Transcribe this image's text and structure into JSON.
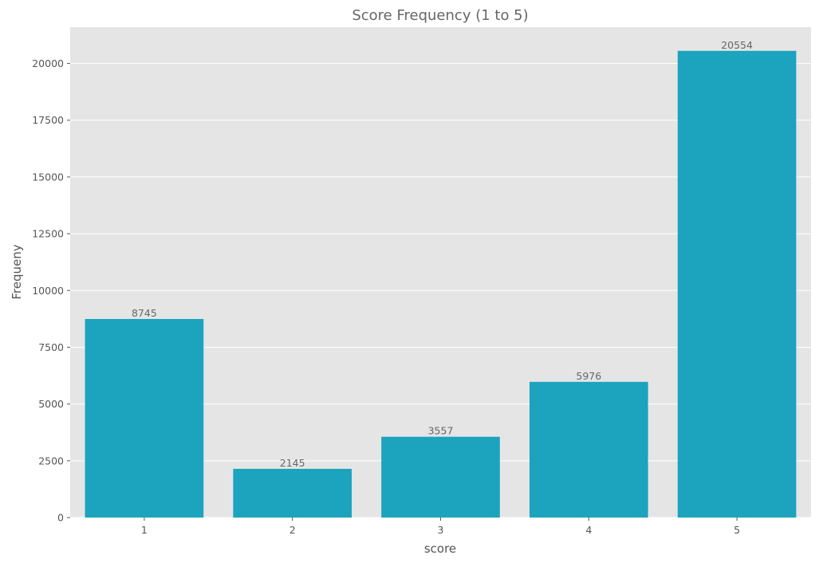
{
  "chart_data": {
    "type": "bar",
    "title": "Score Frequency (1 to 5)",
    "xlabel": "score",
    "ylabel": "Frequeny",
    "categories": [
      "1",
      "2",
      "3",
      "4",
      "5"
    ],
    "values": [
      8745,
      2145,
      3557,
      5976,
      20554
    ],
    "data_labels": [
      "8745",
      "2145",
      "3557",
      "5976",
      "20554"
    ],
    "ylim": [
      0,
      21600
    ],
    "yticks": [
      0,
      2500,
      5000,
      7500,
      10000,
      12500,
      15000,
      17500,
      20000
    ],
    "ytick_labels": [
      "0",
      "2500",
      "5000",
      "7500",
      "10000",
      "12500",
      "15000",
      "17500",
      "20000"
    ],
    "grid": true,
    "colors": {
      "bar": "#1CA3BE",
      "plot_background": "#E5E5E5",
      "grid": "#FFFFFF",
      "text": "#555555"
    }
  }
}
